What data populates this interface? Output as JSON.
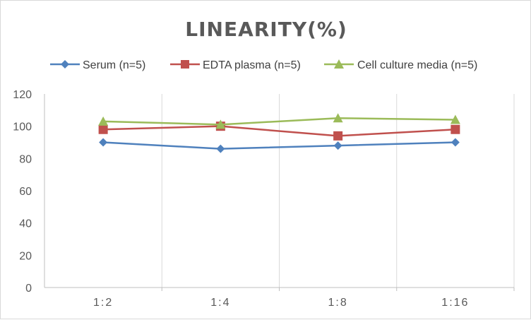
{
  "chart_data": {
    "type": "line",
    "title": "LINEARITY(%)",
    "categories": [
      "1:2",
      "1:4",
      "1:8",
      "1:16"
    ],
    "ylim": [
      0,
      120
    ],
    "yticks": [
      0,
      20,
      40,
      60,
      80,
      100,
      120
    ],
    "grid": "vertical",
    "legend_position": "top",
    "series": [
      {
        "name": "Serum (n=5)",
        "values": [
          90,
          86,
          88,
          90
        ],
        "color": "#4f81bd",
        "marker": "diamond"
      },
      {
        "name": "EDTA plasma (n=5)",
        "values": [
          98,
          100,
          94,
          98
        ],
        "color": "#c0504d",
        "marker": "square"
      },
      {
        "name": "Cell culture media (n=5)",
        "values": [
          103,
          101,
          105,
          104
        ],
        "color": "#9bbb59",
        "marker": "triangle"
      }
    ]
  }
}
